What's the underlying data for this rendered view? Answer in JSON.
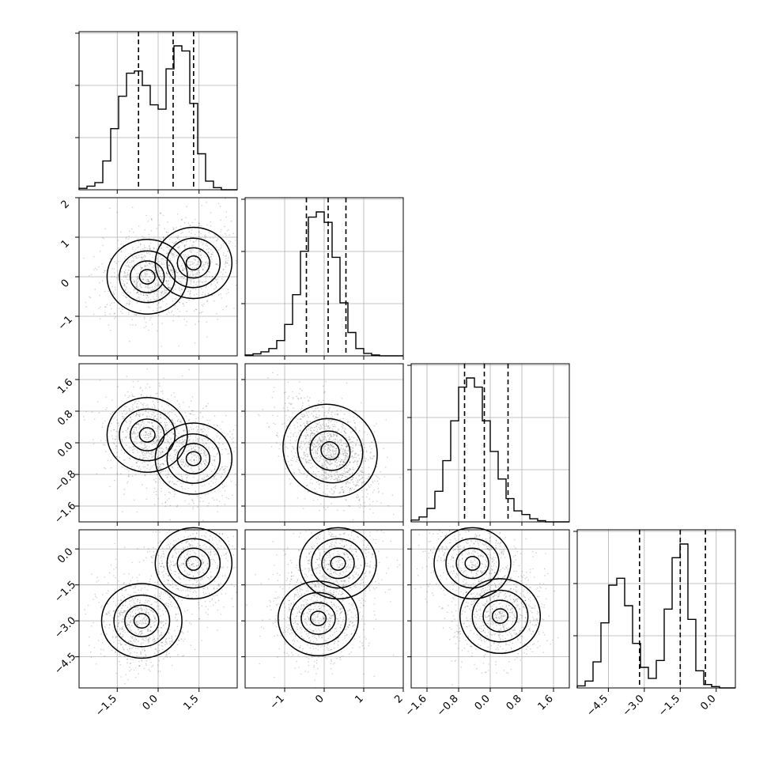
{
  "chart_data": {
    "type": "corner",
    "grid": true,
    "parameters": [
      {
        "index": 0,
        "range": [
          -2.9,
          2.9
        ],
        "ticks": [
          -1.5,
          0.0,
          1.5
        ],
        "tick_labels": [
          "−1.5",
          "0.0",
          "1.5"
        ],
        "quantiles": [
          -0.72,
          0.55,
          1.3
        ],
        "histogram": [
          2,
          5,
          10,
          40,
          85,
          130,
          162,
          165,
          145,
          118,
          112,
          168,
          200,
          193,
          120,
          50,
          12,
          3,
          0,
          0
        ]
      },
      {
        "index": 1,
        "range": [
          -2.0,
          2.0
        ],
        "ticks": [
          -1,
          0,
          1,
          2
        ],
        "tick_labels": [
          "−1",
          "0",
          "1",
          "2"
        ],
        "quantiles": [
          -0.45,
          0.1,
          0.55
        ],
        "histogram": [
          2,
          5,
          10,
          18,
          38,
          78,
          152,
          260,
          345,
          358,
          332,
          245,
          132,
          58,
          18,
          6,
          2,
          0,
          0,
          0
        ]
      },
      {
        "index": 2,
        "range": [
          -2.0,
          2.0
        ],
        "ticks": [
          -1.6,
          -0.8,
          0.0,
          0.8,
          1.6
        ],
        "tick_labels": [
          "−1.6",
          "−0.8",
          "0.0",
          "0.8",
          "1.6"
        ],
        "quantiles": [
          -0.65,
          -0.15,
          0.45
        ],
        "histogram": [
          3,
          8,
          22,
          50,
          100,
          165,
          220,
          235,
          220,
          165,
          115,
          70,
          38,
          18,
          12,
          5,
          2,
          0,
          0,
          0
        ]
      },
      {
        "index": 3,
        "range": [
          -5.8,
          0.8
        ],
        "ticks": [
          -4.5,
          -3.0,
          -1.5,
          0.0
        ],
        "tick_labels": [
          "−4.5",
          "−3.0",
          "−1.5",
          "0.0"
        ],
        "quantiles": [
          -3.2,
          -1.5,
          -0.45
        ],
        "histogram": [
          3,
          10,
          38,
          95,
          150,
          160,
          120,
          65,
          30,
          14,
          40,
          115,
          190,
          210,
          100,
          25,
          5,
          2,
          0,
          0
        ]
      }
    ],
    "joint_modes": {
      "p1_vs_p0": [
        {
          "x": -0.4,
          "y": 0.0,
          "w": 0.55
        },
        {
          "x": 1.3,
          "y": 0.35,
          "w": 0.45
        }
      ],
      "p2_vs_p0": [
        {
          "x": -0.4,
          "y": 0.2,
          "w": 0.55
        },
        {
          "x": 1.3,
          "y": -0.4,
          "w": 0.45
        }
      ],
      "p2_vs_p1": [
        {
          "x": 0.15,
          "y": -0.2,
          "w": 1.0
        }
      ],
      "p3_vs_p0": [
        {
          "x": -0.6,
          "y": -3.0,
          "w": 0.55
        },
        {
          "x": 1.3,
          "y": -0.6,
          "w": 0.45
        }
      ],
      "p3_vs_p1": [
        {
          "x": 0.35,
          "y": -0.6,
          "w": 0.45
        },
        {
          "x": -0.15,
          "y": -2.9,
          "w": 0.55
        }
      ],
      "p3_vs_p2": [
        {
          "x": -0.45,
          "y": -0.6,
          "w": 0.45
        },
        {
          "x": 0.25,
          "y": -2.8,
          "w": 0.55
        }
      ]
    }
  }
}
